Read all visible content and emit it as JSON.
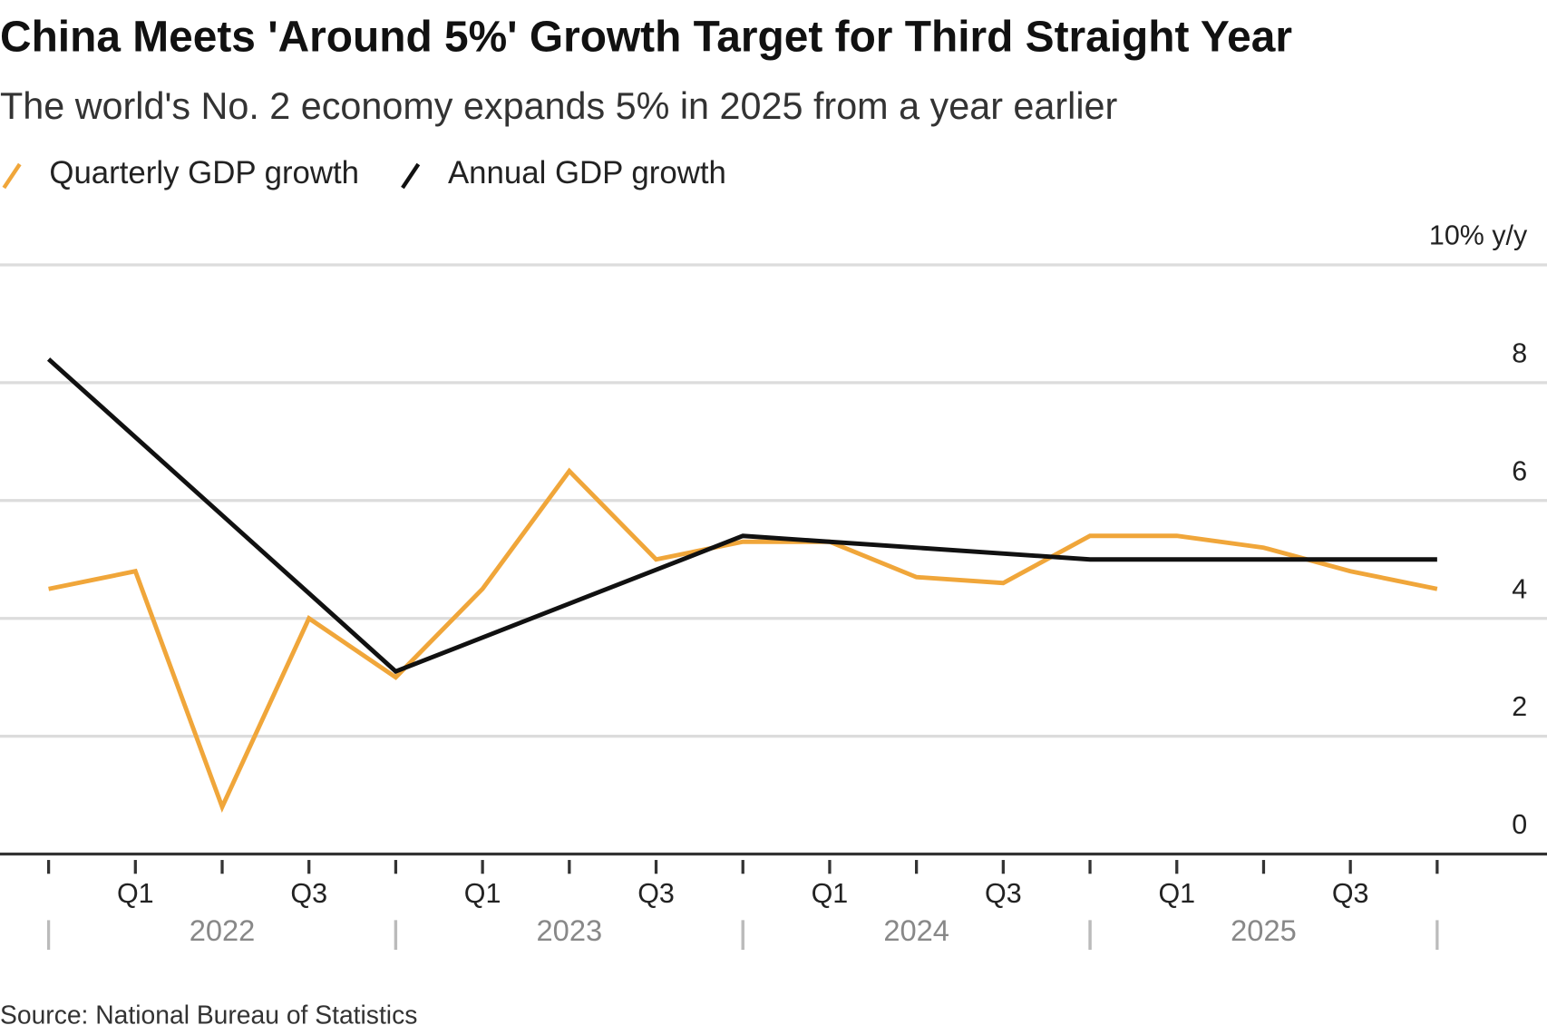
{
  "chart_data": {
    "type": "line",
    "title": "China Meets 'Around 5%' Growth Target for Third Straight Year",
    "subtitle": "The world's No. 2 economy expands 5% in 2025 from a year earlier",
    "source": "Source: National Bureau of Statistics",
    "series": [
      {
        "name": "Quarterly GDP growth",
        "color": "#f0a63a",
        "x": [
          2022,
          2022.25,
          2022.5,
          2022.75,
          2023,
          2023.25,
          2023.5,
          2023.75,
          2024,
          2024.25,
          2024.5,
          2024.75,
          2025,
          2025.25,
          2025.5,
          2025.75,
          2026
        ],
        "values": [
          4.5,
          4.8,
          0.8,
          4.0,
          3.0,
          4.5,
          6.5,
          5.0,
          5.3,
          5.3,
          4.7,
          4.6,
          5.4,
          5.4,
          5.2,
          4.8,
          4.5
        ]
      },
      {
        "name": "Annual GDP growth",
        "color": "#111111",
        "x": [
          2022,
          2023,
          2024,
          2025,
          2026
        ],
        "values": [
          8.4,
          3.1,
          5.4,
          5.0,
          5.0
        ]
      }
    ],
    "xlim": [
      2021.86,
      2026.18
    ],
    "xticks": [
      {
        "value": 2022,
        "label": null
      },
      {
        "value": 2022.25,
        "label": "Q1"
      },
      {
        "value": 2022.5,
        "label": null
      },
      {
        "value": 2022.75,
        "label": "Q3"
      },
      {
        "value": 2023,
        "label": null
      },
      {
        "value": 2023.25,
        "label": "Q1"
      },
      {
        "value": 2023.5,
        "label": null
      },
      {
        "value": 2023.75,
        "label": "Q3"
      },
      {
        "value": 2024,
        "label": null
      },
      {
        "value": 2024.25,
        "label": "Q1"
      },
      {
        "value": 2024.5,
        "label": null
      },
      {
        "value": 2024.75,
        "label": "Q3"
      },
      {
        "value": 2025,
        "label": null
      },
      {
        "value": 2025.25,
        "label": "Q1"
      },
      {
        "value": 2025.5,
        "label": null
      },
      {
        "value": 2025.75,
        "label": "Q3"
      },
      {
        "value": 2026,
        "label": null
      }
    ],
    "year_ticks": [
      {
        "value": 2022.5,
        "label": "2022"
      },
      {
        "value": 2023.5,
        "label": "2023"
      },
      {
        "value": 2024.5,
        "label": "2024"
      },
      {
        "value": 2025.5,
        "label": "2025"
      }
    ],
    "ylim": [
      0,
      10
    ],
    "yticks": [
      0,
      2,
      4,
      6,
      8,
      {
        "value": 10,
        "label": "10% y/y"
      }
    ],
    "grid": true
  }
}
